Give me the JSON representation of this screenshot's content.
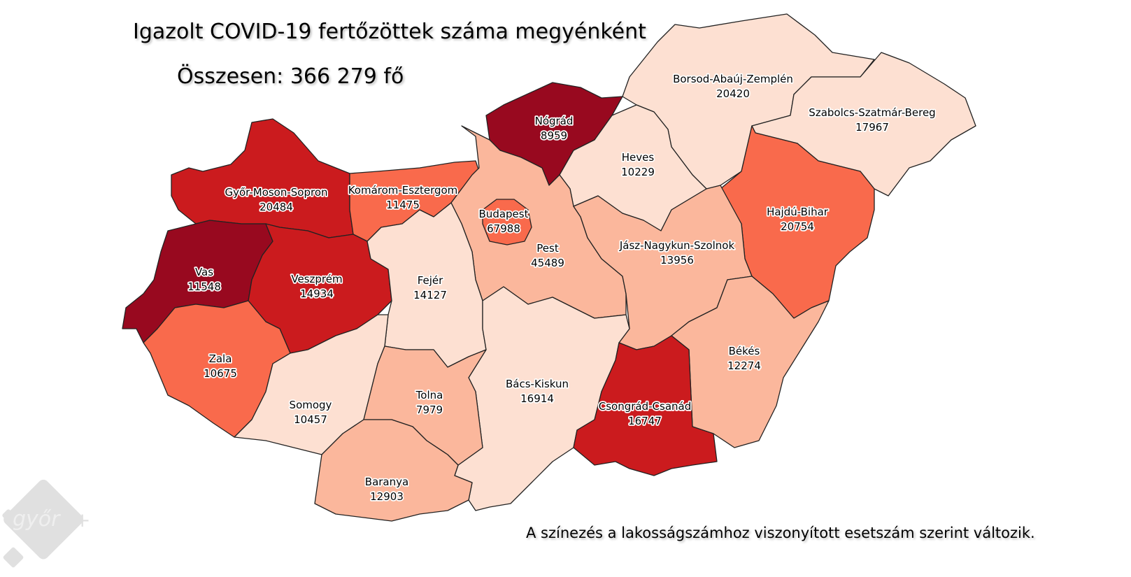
{
  "title": "Igazolt COVID-19 fertőzöttek száma megyénként",
  "total": "Összesen: 366 279 fő",
  "note": "A színezés a lakosságszámhoz viszonyított esetszám szerint változik.",
  "logo": "győr+ MÉDIA",
  "color_scale": {
    "lowest": "#fde0d2",
    "low": "#fbb79c",
    "mid": "#f96a4c",
    "high": "#cb1b1e",
    "highest": "#98091f"
  },
  "counties": [
    {
      "name": "Borsod-Abaúj-Zemplén",
      "cases": "20420",
      "level": "lowest"
    },
    {
      "name": "Szabolcs-Szatmár-Bereg",
      "cases": "17967",
      "level": "lowest"
    },
    {
      "name": "Nógrád",
      "cases": "8959",
      "level": "highest"
    },
    {
      "name": "Heves",
      "cases": "10229",
      "level": "lowest"
    },
    {
      "name": "Hajdú-Bihar",
      "cases": "20754",
      "level": "mid"
    },
    {
      "name": "Győr-Moson-Sopron",
      "cases": "20484",
      "level": "high"
    },
    {
      "name": "Komárom-Esztergom",
      "cases": "11475",
      "level": "mid"
    },
    {
      "name": "Budapest",
      "cases": "67988",
      "level": "mid"
    },
    {
      "name": "Pest",
      "cases": "45489",
      "level": "low"
    },
    {
      "name": "Jász-Nagykun-Szolnok",
      "cases": "13956",
      "level": "low"
    },
    {
      "name": "Vas",
      "cases": "11548",
      "level": "highest"
    },
    {
      "name": "Veszprém",
      "cases": "14934",
      "level": "high"
    },
    {
      "name": "Fejér",
      "cases": "14127",
      "level": "lowest"
    },
    {
      "name": "Békés",
      "cases": "12274",
      "level": "low"
    },
    {
      "name": "Zala",
      "cases": "10675",
      "level": "mid"
    },
    {
      "name": "Bács-Kiskun",
      "cases": "16914",
      "level": "lowest"
    },
    {
      "name": "Csongrád-Csanád",
      "cases": "16747",
      "level": "high"
    },
    {
      "name": "Somogy",
      "cases": "10457",
      "level": "lowest"
    },
    {
      "name": "Tolna",
      "cases": "7979",
      "level": "low"
    },
    {
      "name": "Baranya",
      "cases": "12903",
      "level": "low"
    }
  ]
}
